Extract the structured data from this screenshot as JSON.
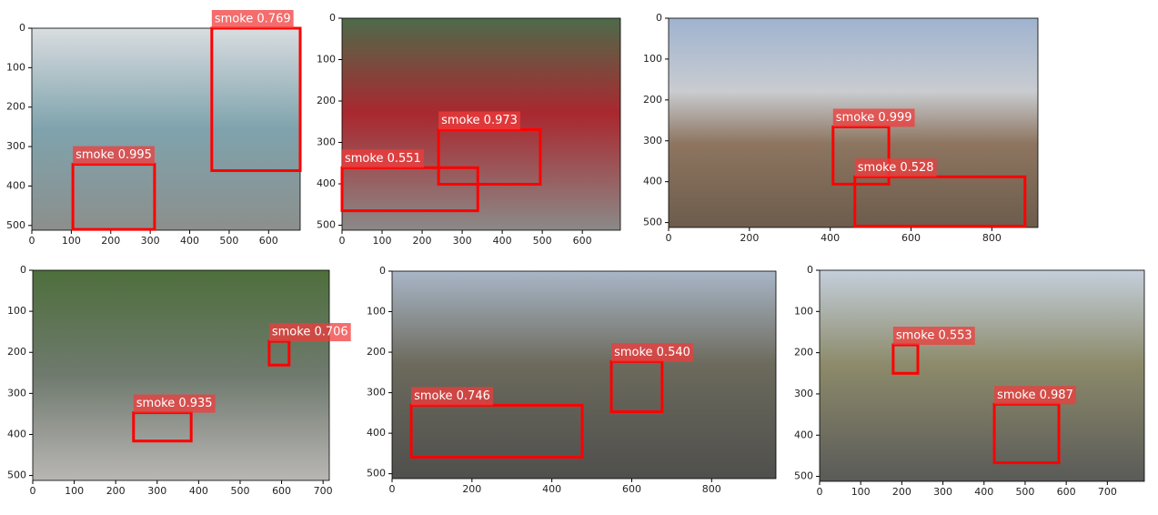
{
  "panels": [
    {
      "xlim": [
        0,
        680
      ],
      "ylim": [
        0,
        512
      ],
      "xticks": [
        0,
        100,
        200,
        300,
        400,
        500,
        600
      ],
      "yticks": [
        0,
        100,
        200,
        300,
        400,
        500
      ],
      "detections": [
        {
          "label": "smoke 0.769",
          "box": [
            456,
            0,
            680,
            361
          ]
        },
        {
          "label": "smoke 0.995",
          "box": [
            104,
            345,
            311,
            510
          ]
        }
      ]
    },
    {
      "xlim": [
        0,
        695
      ],
      "ylim": [
        0,
        512
      ],
      "xticks": [
        0,
        100,
        200,
        300,
        400,
        500,
        600
      ],
      "yticks": [
        0,
        100,
        200,
        300,
        400,
        500
      ],
      "detections": [
        {
          "label": "smoke 0.973",
          "box": [
            241,
            269,
            495,
            401
          ]
        },
        {
          "label": "smoke 0.551",
          "box": [
            0,
            361,
            339,
            465
          ]
        }
      ]
    },
    {
      "xlim": [
        0,
        914
      ],
      "ylim": [
        0,
        512
      ],
      "xticks": [
        0,
        200,
        400,
        600,
        800
      ],
      "yticks": [
        0,
        100,
        200,
        300,
        400,
        500
      ],
      "detections": [
        {
          "label": "smoke 0.999",
          "box": [
            407,
            266,
            545,
            406
          ]
        },
        {
          "label": "smoke 0.528",
          "box": [
            461,
            388,
            882,
            509
          ]
        }
      ]
    },
    {
      "xlim": [
        0,
        715
      ],
      "ylim": [
        0,
        512
      ],
      "xticks": [
        0,
        100,
        200,
        300,
        400,
        500,
        600,
        700
      ],
      "yticks": [
        0,
        100,
        200,
        300,
        400,
        500
      ],
      "detections": [
        {
          "label": "smoke 0.706",
          "box": [
            570,
            173,
            618,
            231
          ]
        },
        {
          "label": "smoke 0.935",
          "box": [
            243,
            347,
            382,
            416
          ]
        }
      ]
    },
    {
      "xlim": [
        0,
        961
      ],
      "ylim": [
        0,
        512
      ],
      "xticks": [
        0,
        200,
        400,
        600,
        800
      ],
      "yticks": [
        0,
        100,
        200,
        300,
        400,
        500
      ],
      "detections": [
        {
          "label": "smoke 0.540",
          "box": [
            549,
            223,
            676,
            347
          ]
        },
        {
          "label": "smoke 0.746",
          "box": [
            48,
            331,
            476,
            459
          ]
        }
      ]
    },
    {
      "xlim": [
        0,
        790
      ],
      "ylim": [
        0,
        512
      ],
      "xticks": [
        0,
        100,
        200,
        300,
        400,
        500,
        600,
        700
      ],
      "yticks": [
        0,
        100,
        200,
        300,
        400,
        500
      ],
      "detections": [
        {
          "label": "smoke 0.553",
          "box": [
            179,
            181,
            239,
            250
          ]
        },
        {
          "label": "smoke 0.987",
          "box": [
            425,
            325,
            582,
            467
          ]
        }
      ]
    }
  ]
}
